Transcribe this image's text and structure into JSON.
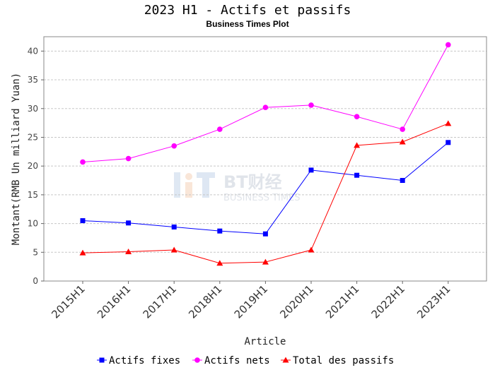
{
  "chart_data": {
    "type": "line",
    "title": "2023 H1 - Actifs et passifs",
    "subtitle": "Business Times Plot",
    "xlabel": "Article",
    "ylabel": "Montant(RMB Un milliard Yuan)",
    "categories": [
      "2015H1",
      "2016H1",
      "2017H1",
      "2018H1",
      "2019H1",
      "2020H1",
      "2021H1",
      "2022H1",
      "2023H1"
    ],
    "ylim": [
      0,
      42.5
    ],
    "yticks": [
      0,
      5,
      10,
      15,
      20,
      25,
      30,
      35,
      40
    ],
    "grid": true,
    "legend_position": "bottom",
    "series": [
      {
        "name": "Actifs fixes",
        "color": "#0000ff",
        "marker": "square",
        "values": [
          10.5,
          10.1,
          9.4,
          8.7,
          8.2,
          19.3,
          18.4,
          17.5,
          24.1
        ]
      },
      {
        "name": "Actifs nets",
        "color": "#ff00ff",
        "marker": "circle",
        "values": [
          20.7,
          21.3,
          23.5,
          26.4,
          30.2,
          30.6,
          28.6,
          26.4,
          41.1
        ]
      },
      {
        "name": "Total des passifs",
        "color": "#ff0000",
        "marker": "triangle",
        "values": [
          4.9,
          5.1,
          5.4,
          3.1,
          3.3,
          5.4,
          23.6,
          24.2,
          27.4
        ]
      }
    ]
  },
  "watermark": {
    "brand": "BT财经",
    "tagline": "BUSINESS TIMES"
  }
}
